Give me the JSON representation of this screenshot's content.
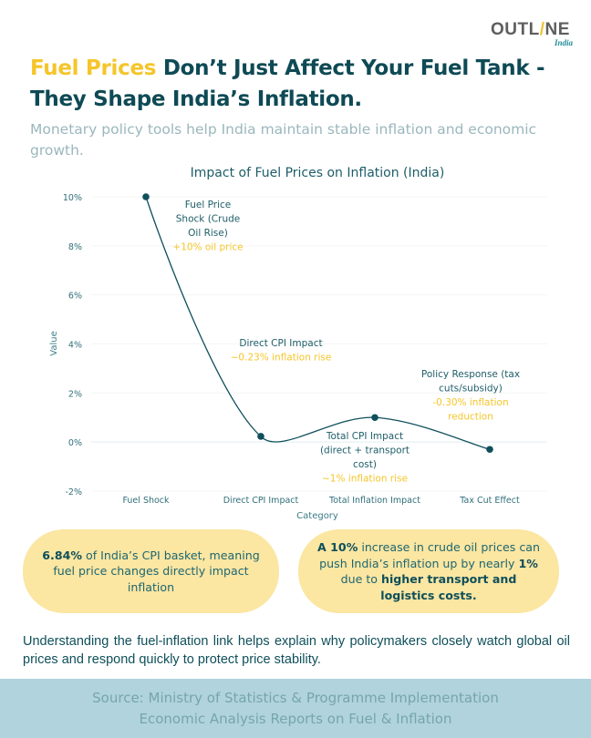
{
  "brand": {
    "logo_text_left": "OUTL",
    "logo_slash": "/",
    "logo_text_right": "NE",
    "logo_sub": "India"
  },
  "headline": {
    "accent": "Fuel Prices",
    "rest": " Don’t Just Affect Your Fuel Tank - They Shape India’s Inflation."
  },
  "subtitle": "Monetary policy tools help India maintain stable inflation and economic growth.",
  "colors": {
    "accent_yellow": "#f5c52a",
    "primary_teal": "#0e4f5a",
    "line": "#0f4f5c",
    "card_bg": "#fbe6a2",
    "source_bg": "#b1d3de"
  },
  "chart_data": {
    "type": "line",
    "title": "Impact of Fuel Prices on Inflation (India)",
    "xlabel": "Category",
    "ylabel": "Value",
    "categories": [
      "Fuel Shock",
      "Direct CPI Impact",
      "Total Inflation Impact",
      "Tax Cut Effect"
    ],
    "values": [
      10,
      0.23,
      1.0,
      -0.3
    ],
    "ylim": [
      -2,
      10
    ],
    "yticks": [
      10,
      8,
      6,
      4,
      2,
      0,
      -2
    ],
    "ytick_labels": [
      "10%",
      "8%",
      "6%",
      "4%",
      "2%",
      "0%",
      "-2%"
    ],
    "grid": true,
    "curve": "smooth",
    "annotations": [
      {
        "point": 0,
        "title_lines": [
          "Fuel Price",
          "Shock (Crude",
          "Oil Rise)"
        ],
        "note_lines": [
          "+10% oil price"
        ]
      },
      {
        "point": 1,
        "title_lines": [
          "Direct CPI Impact"
        ],
        "note_lines": [
          "~0.23% inflation rise"
        ]
      },
      {
        "point": 2,
        "title_lines": [
          "Total CPI Impact",
          "(direct + transport",
          "cost)"
        ],
        "note_lines": [
          "~1% inflation rise"
        ]
      },
      {
        "point": 3,
        "title_lines": [
          "Policy Response (tax",
          "cuts/subsidy)"
        ],
        "note_lines": [
          "-0.30% inflation",
          "reduction"
        ]
      }
    ]
  },
  "cards": [
    {
      "bold": "6.84%",
      "text": " of India’s CPI basket, meaning fuel price changes directly impact inflation"
    },
    {
      "bold1": "A 10%",
      "text1": " increase in crude oil prices can push India’s inflation up by nearly ",
      "bold2": "1%",
      "text2": " due to ",
      "bold3": "higher transport and logistics costs."
    }
  ],
  "footer_text": "Understanding the fuel-inflation link helps explain why policymakers closely watch global oil prices and respond quickly to protect price stability.",
  "source": {
    "line1": "Source: Ministry of Statistics & Programme Implementation",
    "line2": "Economic Analysis Reports on Fuel & Inflation"
  }
}
